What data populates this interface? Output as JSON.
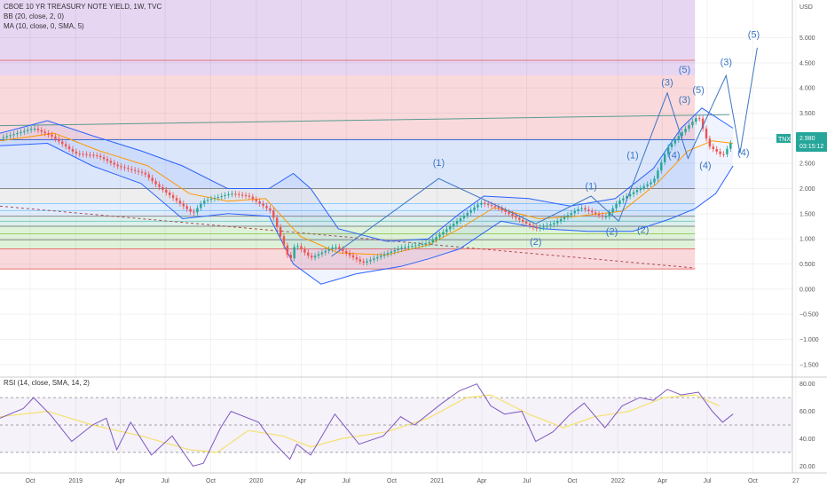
{
  "header": {
    "title": "CBOE 10 YR TREASURY NOTE YIELD, 1W, TVC",
    "bb_label": "BB (20, close, 2, 0)",
    "ma_label": "MA (10, close, 0, SMA, 5)",
    "rsi_label": "RSI (14, close, SMA, 14, 2)"
  },
  "price_badge": {
    "symbol": "TNX",
    "price": "2.980",
    "countdown": "03:15:12"
  },
  "colors": {
    "candle_up": "#26a69a",
    "candle_down": "#ef5350",
    "bollinger": "#2962ff",
    "ma": "#ff9800",
    "rsi": "#7e57c2",
    "rsi_ma": "#f5e16e",
    "wave": "#3a75c4",
    "badge": "#26a69a"
  },
  "chart_data": {
    "type": "line",
    "ylim": [
      -1.75,
      5.75
    ],
    "yaxis_unit": "USD",
    "yticks": [
      "5.000",
      "4.500",
      "4.000",
      "3.500",
      "3.000",
      "2.500",
      "2.000",
      "1.500",
      "1.000",
      "0.500",
      "0.000",
      "−0.500",
      "−1.000",
      "−1.500"
    ],
    "ytick_values": [
      5.0,
      4.5,
      4.0,
      3.5,
      3.0,
      2.5,
      2.0,
      1.5,
      1.0,
      0.5,
      0.0,
      -0.5,
      -1.0,
      -1.5
    ],
    "x_range": [
      "2018-08-01",
      "2022-12-20"
    ],
    "xticks": [
      {
        "label": "Oct",
        "date": "2018-10-01"
      },
      {
        "label": "2019",
        "date": "2019-01-01"
      },
      {
        "label": "Apr",
        "date": "2019-04-01"
      },
      {
        "label": "Jul",
        "date": "2019-07-01"
      },
      {
        "label": "Oct",
        "date": "2019-10-01"
      },
      {
        "label": "2020",
        "date": "2020-01-01"
      },
      {
        "label": "Apr",
        "date": "2020-04-01"
      },
      {
        "label": "Jul",
        "date": "2020-07-01"
      },
      {
        "label": "Oct",
        "date": "2020-10-01"
      },
      {
        "label": "2021",
        "date": "2021-01-01"
      },
      {
        "label": "Apr",
        "date": "2021-04-01"
      },
      {
        "label": "Jul",
        "date": "2021-07-01"
      },
      {
        "label": "Oct",
        "date": "2021-10-01"
      },
      {
        "label": "2022",
        "date": "2022-01-01"
      },
      {
        "label": "Apr",
        "date": "2022-04-01"
      },
      {
        "label": "Jul",
        "date": "2022-07-01"
      },
      {
        "label": "Oct",
        "date": "2022-10-01"
      },
      {
        "label": "27",
        "date": "2022-12-27"
      }
    ],
    "zones": [
      {
        "y0": 4.25,
        "y1": 5.75,
        "x_end": "2022-06-06",
        "color": "#e6d6f2"
      },
      {
        "y0": 2.97,
        "y1": 4.25,
        "x_end": "2022-06-06",
        "color": "#f9d9dc"
      },
      {
        "y0": 2.0,
        "y1": 2.97,
        "x_end": "2022-06-06",
        "color": "#dbe6fb"
      },
      {
        "y0": 1.7,
        "y1": 2.0,
        "x_end": "2022-06-06",
        "color": "#eeeeee"
      },
      {
        "y0": 1.45,
        "y1": 1.7,
        "x_end": "2022-06-06",
        "color": "#e3efff"
      },
      {
        "y0": 1.25,
        "y1": 1.45,
        "x_end": "2022-06-06",
        "color": "#dcf0ec"
      },
      {
        "y0": 0.8,
        "y1": 1.25,
        "x_end": "2022-06-06",
        "color": "#def2d9"
      },
      {
        "y0": 0.4,
        "y1": 0.8,
        "x_end": "2022-06-06",
        "color": "#f9d9dc"
      }
    ],
    "hlines": [
      {
        "y": 4.55,
        "color": "#e57373"
      },
      {
        "y": 2.97,
        "color": "#3f6ad1"
      },
      {
        "y": 2.0,
        "color": "#888888"
      },
      {
        "y": 1.7,
        "color": "#90caf9"
      },
      {
        "y": 1.56,
        "color": "#90caf9"
      },
      {
        "y": 1.45,
        "color": "#888888"
      },
      {
        "y": 1.35,
        "color": "#80cbc4"
      },
      {
        "y": 1.25,
        "color": "#888888"
      },
      {
        "y": 1.1,
        "color": "#9ccc65"
      },
      {
        "y": 0.98,
        "color": "#888888"
      },
      {
        "y": 0.8,
        "color": "#e57373"
      },
      {
        "y": 0.4,
        "color": "#e57373"
      }
    ],
    "trendlines": [
      {
        "from": [
          "2018-08-01",
          3.25
        ],
        "to": [
          "2022-08-15",
          3.47
        ],
        "color": "#5a9a8f",
        "dash": false
      },
      {
        "from": [
          "2018-08-01",
          1.65
        ],
        "to": [
          "2022-06-06",
          0.42
        ],
        "color": "#b04a55",
        "dash": true
      }
    ],
    "close": [
      {
        "x": "2018-08-01",
        "y": 3.0
      },
      {
        "x": "2018-10-08",
        "y": 3.2
      },
      {
        "x": "2018-11-12",
        "y": 3.05
      },
      {
        "x": "2018-12-31",
        "y": 2.7
      },
      {
        "x": "2019-02-15",
        "y": 2.65
      },
      {
        "x": "2019-03-25",
        "y": 2.45
      },
      {
        "x": "2019-05-20",
        "y": 2.3
      },
      {
        "x": "2019-06-10",
        "y": 2.1
      },
      {
        "x": "2019-08-26",
        "y": 1.5
      },
      {
        "x": "2019-09-15",
        "y": 1.75
      },
      {
        "x": "2019-11-11",
        "y": 1.9
      },
      {
        "x": "2019-12-16",
        "y": 1.85
      },
      {
        "x": "2020-01-31",
        "y": 1.55
      },
      {
        "x": "2020-03-09",
        "y": 0.55
      },
      {
        "x": "2020-03-20",
        "y": 0.9
      },
      {
        "x": "2020-04-20",
        "y": 0.62
      },
      {
        "x": "2020-06-08",
        "y": 0.85
      },
      {
        "x": "2020-08-03",
        "y": 0.52
      },
      {
        "x": "2020-10-19",
        "y": 0.82
      },
      {
        "x": "2020-12-14",
        "y": 0.92
      },
      {
        "x": "2021-01-11",
        "y": 1.12
      },
      {
        "x": "2021-03-29",
        "y": 1.72
      },
      {
        "x": "2021-05-03",
        "y": 1.62
      },
      {
        "x": "2021-07-19",
        "y": 1.2
      },
      {
        "x": "2021-08-23",
        "y": 1.3
      },
      {
        "x": "2021-10-18",
        "y": 1.62
      },
      {
        "x": "2021-12-06",
        "y": 1.42
      },
      {
        "x": "2022-01-03",
        "y": 1.75
      },
      {
        "x": "2022-02-14",
        "y": 2.0
      },
      {
        "x": "2022-03-14",
        "y": 2.15
      },
      {
        "x": "2022-04-11",
        "y": 2.8
      },
      {
        "x": "2022-05-09",
        "y": 3.1
      },
      {
        "x": "2022-06-13",
        "y": 3.45
      },
      {
        "x": "2022-07-04",
        "y": 2.85
      },
      {
        "x": "2022-08-01",
        "y": 2.65
      },
      {
        "x": "2022-08-22",
        "y": 2.98
      }
    ],
    "ma": [
      {
        "x": "2018-08-01",
        "y": 2.95
      },
      {
        "x": "2018-11-19",
        "y": 3.1
      },
      {
        "x": "2019-02-18",
        "y": 2.75
      },
      {
        "x": "2019-05-27",
        "y": 2.45
      },
      {
        "x": "2019-08-19",
        "y": 1.9
      },
      {
        "x": "2019-11-04",
        "y": 1.75
      },
      {
        "x": "2020-01-20",
        "y": 1.8
      },
      {
        "x": "2020-03-30",
        "y": 1.05
      },
      {
        "x": "2020-06-15",
        "y": 0.72
      },
      {
        "x": "2020-09-21",
        "y": 0.68
      },
      {
        "x": "2020-12-14",
        "y": 0.88
      },
      {
        "x": "2021-02-15",
        "y": 1.2
      },
      {
        "x": "2021-04-26",
        "y": 1.62
      },
      {
        "x": "2021-07-26",
        "y": 1.4
      },
      {
        "x": "2021-10-11",
        "y": 1.45
      },
      {
        "x": "2022-01-10",
        "y": 1.55
      },
      {
        "x": "2022-03-21",
        "y": 2.1
      },
      {
        "x": "2022-05-23",
        "y": 2.75
      },
      {
        "x": "2022-07-11",
        "y": 2.95
      },
      {
        "x": "2022-08-22",
        "y": 2.9
      }
    ],
    "bb_upper": [
      {
        "x": "2018-08-01",
        "y": 3.1
      },
      {
        "x": "2018-11-05",
        "y": 3.35
      },
      {
        "x": "2019-02-04",
        "y": 3.05
      },
      {
        "x": "2019-05-13",
        "y": 2.75
      },
      {
        "x": "2019-08-05",
        "y": 2.45
      },
      {
        "x": "2019-11-04",
        "y": 2.0
      },
      {
        "x": "2020-01-27",
        "y": 2.0
      },
      {
        "x": "2020-03-16",
        "y": 2.3
      },
      {
        "x": "2020-04-20",
        "y": 2.0
      },
      {
        "x": "2020-06-15",
        "y": 1.2
      },
      {
        "x": "2020-09-21",
        "y": 0.95
      },
      {
        "x": "2020-12-14",
        "y": 1.0
      },
      {
        "x": "2021-02-15",
        "y": 1.5
      },
      {
        "x": "2021-04-05",
        "y": 1.85
      },
      {
        "x": "2021-07-05",
        "y": 1.8
      },
      {
        "x": "2021-09-27",
        "y": 1.65
      },
      {
        "x": "2021-12-27",
        "y": 1.8
      },
      {
        "x": "2022-03-14",
        "y": 2.4
      },
      {
        "x": "2022-05-09",
        "y": 3.2
      },
      {
        "x": "2022-06-20",
        "y": 3.6
      },
      {
        "x": "2022-08-22",
        "y": 3.2
      }
    ],
    "bb_lower": [
      {
        "x": "2018-08-01",
        "y": 2.85
      },
      {
        "x": "2018-11-05",
        "y": 2.9
      },
      {
        "x": "2019-02-04",
        "y": 2.45
      },
      {
        "x": "2019-05-13",
        "y": 2.1
      },
      {
        "x": "2019-08-05",
        "y": 1.4
      },
      {
        "x": "2019-11-04",
        "y": 1.5
      },
      {
        "x": "2020-01-27",
        "y": 1.45
      },
      {
        "x": "2020-03-16",
        "y": 0.5
      },
      {
        "x": "2020-05-11",
        "y": 0.1
      },
      {
        "x": "2020-07-20",
        "y": 0.3
      },
      {
        "x": "2020-10-19",
        "y": 0.45
      },
      {
        "x": "2020-12-14",
        "y": 0.6
      },
      {
        "x": "2021-02-15",
        "y": 0.8
      },
      {
        "x": "2021-05-10",
        "y": 1.35
      },
      {
        "x": "2021-08-02",
        "y": 1.2
      },
      {
        "x": "2021-11-01",
        "y": 1.15
      },
      {
        "x": "2022-01-31",
        "y": 1.15
      },
      {
        "x": "2022-04-18",
        "y": 1.4
      },
      {
        "x": "2022-06-06",
        "y": 1.6
      },
      {
        "x": "2022-07-18",
        "y": 1.9
      },
      {
        "x": "2022-08-22",
        "y": 2.45
      }
    ],
    "projection": [
      {
        "x": "2020-06-01",
        "y": 0.65
      },
      {
        "x": "2021-01-04",
        "y": 2.2
      },
      {
        "x": "2021-07-19",
        "y": 1.3
      },
      {
        "x": "2021-11-08",
        "y": 1.85
      },
      {
        "x": "2022-01-03",
        "y": 1.35
      },
      {
        "x": "2022-04-11",
        "y": 3.9
      },
      {
        "x": "2022-05-23",
        "y": 2.6
      },
      {
        "x": "2022-08-08",
        "y": 4.25
      },
      {
        "x": "2022-09-05",
        "y": 2.7
      },
      {
        "x": "2022-10-10",
        "y": 4.8
      }
    ],
    "wave_labels": [
      {
        "text": "(1)",
        "x": "2021-01-04",
        "y": 2.45
      },
      {
        "text": "(2)",
        "x": "2021-07-19",
        "y": 0.88
      },
      {
        "text": "(1)",
        "x": "2021-11-08",
        "y": 1.98
      },
      {
        "text": "(2)",
        "x": "2021-12-20",
        "y": 1.08
      },
      {
        "text": "(1)",
        "x": "2022-01-31",
        "y": 2.6
      },
      {
        "text": "(2)",
        "x": "2022-02-21",
        "y": 1.12
      },
      {
        "text": "(3)",
        "x": "2022-04-11",
        "y": 4.05
      },
      {
        "text": "(5)",
        "x": "2022-05-16",
        "y": 4.3
      },
      {
        "text": "(3)",
        "x": "2022-05-16",
        "y": 3.7
      },
      {
        "text": "(5)",
        "x": "2022-06-13",
        "y": 3.9
      },
      {
        "text": "(4)",
        "x": "2022-04-25",
        "y": 2.6
      },
      {
        "text": "(4)",
        "x": "2022-06-27",
        "y": 2.4
      },
      {
        "text": "(3)",
        "x": "2022-08-08",
        "y": 4.45
      },
      {
        "text": "(4)",
        "x": "2022-09-12",
        "y": 2.65
      },
      {
        "text": "(5)",
        "x": "2022-10-03",
        "y": 5.0
      }
    ],
    "rsi": {
      "yticks": [
        "80.00",
        "60.00",
        "40.00",
        "20.00"
      ],
      "ytick_values": [
        80,
        60,
        40,
        20
      ],
      "ylim": [
        15,
        85
      ],
      "bands": [
        70,
        50,
        30
      ],
      "rsi": [
        {
          "x": "2018-08-01",
          "y": 55
        },
        {
          "x": "2018-09-17",
          "y": 62
        },
        {
          "x": "2018-10-08",
          "y": 70
        },
        {
          "x": "2018-11-12",
          "y": 57
        },
        {
          "x": "2018-12-24",
          "y": 38
        },
        {
          "x": "2019-02-04",
          "y": 50
        },
        {
          "x": "2019-03-04",
          "y": 55
        },
        {
          "x": "2019-03-25",
          "y": 32
        },
        {
          "x": "2019-04-22",
          "y": 52
        },
        {
          "x": "2019-06-03",
          "y": 28
        },
        {
          "x": "2019-07-15",
          "y": 42
        },
        {
          "x": "2019-08-26",
          "y": 20
        },
        {
          "x": "2019-09-16",
          "y": 22
        },
        {
          "x": "2019-10-21",
          "y": 48
        },
        {
          "x": "2019-11-11",
          "y": 60
        },
        {
          "x": "2020-01-06",
          "y": 52
        },
        {
          "x": "2020-02-03",
          "y": 38
        },
        {
          "x": "2020-03-09",
          "y": 25
        },
        {
          "x": "2020-03-23",
          "y": 36
        },
        {
          "x": "2020-04-20",
          "y": 28
        },
        {
          "x": "2020-06-08",
          "y": 58
        },
        {
          "x": "2020-07-27",
          "y": 36
        },
        {
          "x": "2020-09-14",
          "y": 42
        },
        {
          "x": "2020-10-19",
          "y": 56
        },
        {
          "x": "2020-11-16",
          "y": 50
        },
        {
          "x": "2021-01-11",
          "y": 66
        },
        {
          "x": "2021-02-15",
          "y": 75
        },
        {
          "x": "2021-03-22",
          "y": 80
        },
        {
          "x": "2021-04-19",
          "y": 64
        },
        {
          "x": "2021-05-17",
          "y": 58
        },
        {
          "x": "2021-06-21",
          "y": 60
        },
        {
          "x": "2021-07-19",
          "y": 38
        },
        {
          "x": "2021-08-23",
          "y": 45
        },
        {
          "x": "2021-09-27",
          "y": 58
        },
        {
          "x": "2021-10-25",
          "y": 66
        },
        {
          "x": "2021-12-06",
          "y": 48
        },
        {
          "x": "2022-01-10",
          "y": 64
        },
        {
          "x": "2022-02-14",
          "y": 70
        },
        {
          "x": "2022-03-14",
          "y": 68
        },
        {
          "x": "2022-04-11",
          "y": 76
        },
        {
          "x": "2022-05-09",
          "y": 72
        },
        {
          "x": "2022-06-13",
          "y": 74
        },
        {
          "x": "2022-07-11",
          "y": 60
        },
        {
          "x": "2022-08-01",
          "y": 52
        },
        {
          "x": "2022-08-22",
          "y": 58
        }
      ],
      "rsi_ma": [
        {
          "x": "2018-08-01",
          "y": 56
        },
        {
          "x": "2018-11-05",
          "y": 60
        },
        {
          "x": "2019-02-04",
          "y": 50
        },
        {
          "x": "2019-05-13",
          "y": 42
        },
        {
          "x": "2019-08-19",
          "y": 32
        },
        {
          "x": "2019-10-14",
          "y": 30
        },
        {
          "x": "2019-12-16",
          "y": 46
        },
        {
          "x": "2020-02-24",
          "y": 42
        },
        {
          "x": "2020-04-20",
          "y": 34
        },
        {
          "x": "2020-06-22",
          "y": 40
        },
        {
          "x": "2020-09-21",
          "y": 45
        },
        {
          "x": "2020-12-14",
          "y": 55
        },
        {
          "x": "2021-03-01",
          "y": 70
        },
        {
          "x": "2021-04-19",
          "y": 72
        },
        {
          "x": "2021-07-05",
          "y": 58
        },
        {
          "x": "2021-09-13",
          "y": 48
        },
        {
          "x": "2021-11-15",
          "y": 56
        },
        {
          "x": "2022-01-24",
          "y": 60
        },
        {
          "x": "2022-04-04",
          "y": 70
        },
        {
          "x": "2022-06-06",
          "y": 72
        },
        {
          "x": "2022-07-25",
          "y": 64
        }
      ]
    }
  }
}
